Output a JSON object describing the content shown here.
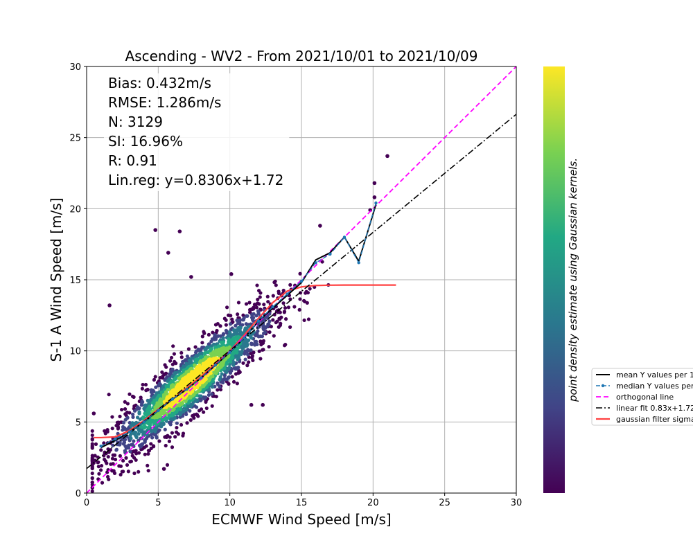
{
  "chart_data": {
    "type": "scatter",
    "title": "Ascending - WV2 - From 2021/10/01 to 2021/10/09",
    "xlabel": "ECMWF Wind Speed [m/s]",
    "ylabel": "S-1 A Wind Speed [m/s]",
    "xlim": [
      0,
      30
    ],
    "ylim": [
      0,
      30
    ],
    "xticks": [
      0,
      5,
      10,
      15,
      20,
      25,
      30
    ],
    "yticks": [
      0,
      5,
      10,
      15,
      20,
      25,
      30
    ],
    "grid": true,
    "colorbar_label": "point density estimate using Gaussian kernels.",
    "colormap": [
      "#440154",
      "#414487",
      "#2a788e",
      "#22a884",
      "#7ad151",
      "#fde725"
    ],
    "stats": [
      "Bias: 0.432m/s",
      "RMSE: 1.286m/s",
      "N: 3129",
      "SI: 16.96%",
      "R: 0.91",
      "Lin.reg: y=0.8306x+1.72"
    ],
    "legend": {
      "placement": "outside-right",
      "entries": [
        {
          "label": "mean Y values per 1",
          "color": "#000000",
          "style": "solid"
        },
        {
          "label": "median Y values per",
          "color": "#1f77b4",
          "style": "dashed-marker"
        },
        {
          "label": "orthogonal line",
          "color": "#ff00ff",
          "style": "dashed"
        },
        {
          "label": "linear fit 0.83x+1.72",
          "color": "#000000",
          "style": "dashdot"
        },
        {
          "label": "gaussian filter sigma",
          "color": "#ff4040",
          "style": "solid"
        }
      ]
    },
    "series": [
      {
        "name": "mean Y values per 1",
        "color": "#000000",
        "x": [
          1,
          2,
          3,
          4,
          5,
          6,
          7,
          8,
          9,
          10,
          11,
          12,
          13,
          14,
          15,
          16,
          17,
          18,
          19,
          20.2
        ],
        "y": [
          3.2,
          3.7,
          4.3,
          5.0,
          5.8,
          6.6,
          7.3,
          8.1,
          9.0,
          9.9,
          10.9,
          12.1,
          13.0,
          13.9,
          14.8,
          16.4,
          16.9,
          18.0,
          16.3,
          20.3
        ]
      },
      {
        "name": "median Y values per",
        "color": "#1f77b4",
        "x": [
          1,
          2,
          3,
          4,
          5,
          6,
          7,
          8,
          9,
          10,
          11,
          12,
          13,
          14,
          15,
          16,
          17,
          18,
          19,
          20.2
        ],
        "y": [
          3.3,
          3.8,
          4.3,
          5.0,
          5.8,
          6.6,
          7.3,
          8.1,
          9.0,
          9.9,
          10.9,
          12.1,
          13.1,
          14.0,
          14.9,
          16.2,
          16.8,
          18.0,
          16.2,
          20.4
        ]
      },
      {
        "name": "orthogonal line",
        "color": "#ff00ff",
        "x": [
          0,
          30
        ],
        "y": [
          0,
          30
        ]
      },
      {
        "name": "linear fit 0.83x+1.72",
        "color": "#000000",
        "x": [
          0,
          30
        ],
        "y": [
          1.72,
          26.64
        ]
      },
      {
        "name": "gaussian filter sigma",
        "color": "#ff4040",
        "x": [
          0.5,
          1,
          2,
          3,
          4,
          5,
          6,
          7,
          8,
          9,
          10,
          11,
          12,
          13,
          14,
          15,
          16,
          17,
          18,
          19,
          20,
          21,
          21.6
        ],
        "y": [
          3.9,
          3.9,
          3.95,
          4.4,
          5.1,
          5.9,
          6.6,
          7.4,
          8.2,
          9.1,
          10.0,
          11.1,
          12.3,
          13.4,
          14.2,
          14.5,
          14.6,
          14.62,
          14.63,
          14.63,
          14.63,
          14.63,
          14.63
        ]
      }
    ],
    "scatter_outliers": [
      {
        "x": 4.8,
        "y": 18.5
      },
      {
        "x": 6.5,
        "y": 18.4
      },
      {
        "x": 5.7,
        "y": 16.9
      },
      {
        "x": 1.6,
        "y": 13.2
      },
      {
        "x": 7.3,
        "y": 15.2
      },
      {
        "x": 21.0,
        "y": 23.7
      },
      {
        "x": 20.1,
        "y": 21.8
      },
      {
        "x": 20.1,
        "y": 20.8
      },
      {
        "x": 0.5,
        "y": 5.6
      },
      {
        "x": 5.4,
        "y": 1.7
      },
      {
        "x": 10.1,
        "y": 15.4
      },
      {
        "x": 16.3,
        "y": 18.8
      },
      {
        "x": 19.8,
        "y": 19.9
      },
      {
        "x": 12.3,
        "y": 6.2
      },
      {
        "x": 11.5,
        "y": 6.2
      }
    ]
  }
}
